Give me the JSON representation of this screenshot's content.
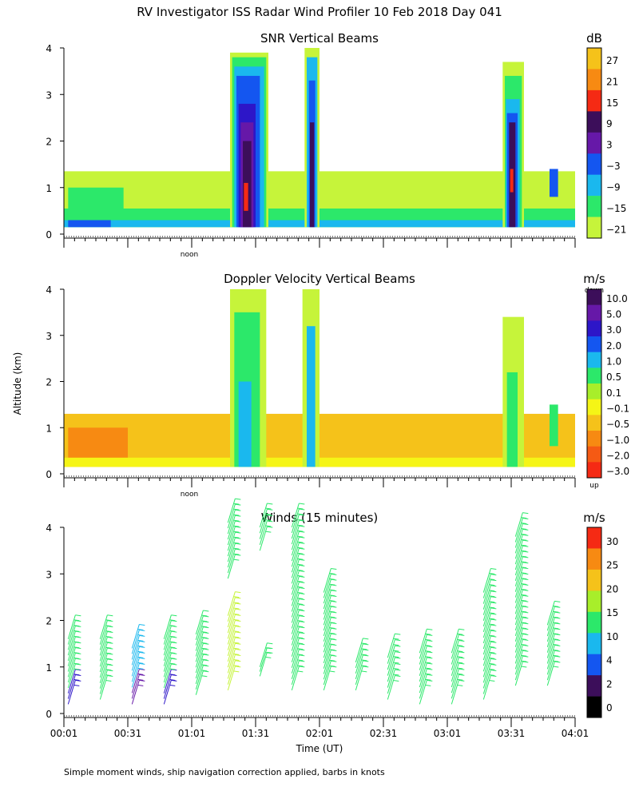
{
  "title": "RV Investigator ISS Radar Wind Profiler  10 Feb 2018 Day 041",
  "footnote": "Simple moment winds, ship navigation correction applied, barbs in knots",
  "y_axis_label": "Altitude (km)",
  "x_axis_label": "Time (UT)",
  "noon_label": "noon",
  "colors": {
    "white": "#ffffff",
    "lime": "#c6f43a",
    "green": "#2ce86a",
    "cyan": "#1ab8ee",
    "blue": "#1456f0",
    "dblue": "#2d16c8",
    "purple": "#6618a8",
    "dpurple": "#3c0e5a",
    "red": "#f52a14",
    "orange": "#f78a12",
    "yorange": "#f5c21a",
    "yellow": "#f5f516"
  },
  "chart_data": [
    {
      "type": "heatmap",
      "id": "snr",
      "title": "SNR Vertical Beams",
      "unit": "dB",
      "ylim": [
        0,
        4
      ],
      "yticks": [
        "0",
        "1",
        "2",
        "3",
        "4"
      ],
      "xlim": [
        0,
        240
      ],
      "colorbar": {
        "labels": [
          "27",
          "21",
          "15",
          "9",
          "3",
          "−3",
          "−9",
          "−15",
          "−21"
        ],
        "colors": [
          "#f5c21a",
          "#f78a12",
          "#f52a14",
          "#3c0e5a",
          "#6618a8",
          "#1456f0",
          "#1ab8ee",
          "#2ce86a",
          "#c6f43a"
        ]
      },
      "cells": [
        {
          "t0": 0,
          "t1": 240,
          "h0": 0.15,
          "h1": 1.35,
          "c": "lime"
        },
        {
          "t0": 2,
          "t1": 28,
          "h0": 0.3,
          "h1": 1.0,
          "c": "green"
        },
        {
          "t0": 0,
          "t1": 240,
          "h0": 0.15,
          "h1": 0.55,
          "c": "green"
        },
        {
          "t0": 0,
          "t1": 240,
          "h0": 0.15,
          "h1": 0.3,
          "c": "cyan"
        },
        {
          "t0": 2,
          "t1": 22,
          "h0": 0.15,
          "h1": 0.3,
          "c": "blue"
        },
        {
          "t0": 78,
          "t1": 96,
          "h0": 0.15,
          "h1": 3.9,
          "c": "lime"
        },
        {
          "t0": 79,
          "t1": 95,
          "h0": 0.15,
          "h1": 3.8,
          "c": "green"
        },
        {
          "t0": 80,
          "t1": 94,
          "h0": 0.15,
          "h1": 3.6,
          "c": "cyan"
        },
        {
          "t0": 81,
          "t1": 92,
          "h0": 0.15,
          "h1": 3.4,
          "c": "blue"
        },
        {
          "t0": 82,
          "t1": 90,
          "h0": 0.15,
          "h1": 2.8,
          "c": "dblue"
        },
        {
          "t0": 83,
          "t1": 89,
          "h0": 0.15,
          "h1": 2.4,
          "c": "purple"
        },
        {
          "t0": 84,
          "t1": 88,
          "h0": 0.15,
          "h1": 2.0,
          "c": "dpurple"
        },
        {
          "t0": 84.5,
          "t1": 86.5,
          "h0": 0.5,
          "h1": 1.1,
          "c": "red"
        },
        {
          "t0": 113,
          "t1": 120,
          "h0": 0.15,
          "h1": 4.0,
          "c": "lime"
        },
        {
          "t0": 114,
          "t1": 119,
          "h0": 0.15,
          "h1": 3.8,
          "c": "cyan"
        },
        {
          "t0": 115,
          "t1": 118,
          "h0": 0.15,
          "h1": 3.3,
          "c": "blue"
        },
        {
          "t0": 115.5,
          "t1": 117.5,
          "h0": 0.15,
          "h1": 2.4,
          "c": "dpurple"
        },
        {
          "t0": 206,
          "t1": 216,
          "h0": 0.15,
          "h1": 3.7,
          "c": "lime"
        },
        {
          "t0": 207,
          "t1": 215,
          "h0": 0.15,
          "h1": 3.4,
          "c": "green"
        },
        {
          "t0": 207.5,
          "t1": 214,
          "h0": 0.15,
          "h1": 2.9,
          "c": "cyan"
        },
        {
          "t0": 208,
          "t1": 213,
          "h0": 0.15,
          "h1": 2.6,
          "c": "blue"
        },
        {
          "t0": 209,
          "t1": 212,
          "h0": 0.15,
          "h1": 2.4,
          "c": "dpurple"
        },
        {
          "t0": 209.5,
          "t1": 211,
          "h0": 0.9,
          "h1": 1.4,
          "c": "red"
        },
        {
          "t0": 228,
          "t1": 232,
          "h0": 0.8,
          "h1": 1.4,
          "c": "blue"
        }
      ]
    },
    {
      "type": "heatmap",
      "id": "doppler",
      "title": "Doppler Velocity Vertical Beams",
      "unit": "m/s",
      "top_note": "down",
      "bottom_note": "up",
      "ylim": [
        0,
        4
      ],
      "yticks": [
        "0",
        "1",
        "2",
        "3",
        "4"
      ],
      "xlim": [
        0,
        240
      ],
      "colorbar": {
        "labels": [
          "10.0",
          "5.0",
          "3.0",
          "2.0",
          "1.0",
          "0.5",
          "0.1",
          "−0.1",
          "−0.5",
          "−1.0",
          "−2.0",
          "−3.0"
        ],
        "colors": [
          "#3c0e5a",
          "#6618a8",
          "#2d16c8",
          "#1456f0",
          "#1ab8ee",
          "#2ce86a",
          "#a8ee2a",
          "#f5f516",
          "#f5c21a",
          "#f78a12",
          "#f55a14",
          "#f52a14"
        ]
      },
      "cells": [
        {
          "t0": 0,
          "t1": 240,
          "h0": 0.15,
          "h1": 1.3,
          "c": "yorange"
        },
        {
          "t0": 2,
          "t1": 30,
          "h0": 0.25,
          "h1": 1.0,
          "c": "orange"
        },
        {
          "t0": 0,
          "t1": 240,
          "h0": 0.15,
          "h1": 0.35,
          "c": "yellow"
        },
        {
          "t0": 78,
          "t1": 95,
          "h0": 0.15,
          "h1": 4.0,
          "c": "lime"
        },
        {
          "t0": 80,
          "t1": 92,
          "h0": 0.15,
          "h1": 3.5,
          "c": "green"
        },
        {
          "t0": 82,
          "t1": 88,
          "h0": 0.15,
          "h1": 2.0,
          "c": "cyan"
        },
        {
          "t0": 112,
          "t1": 120,
          "h0": 0.15,
          "h1": 4.0,
          "c": "lime"
        },
        {
          "t0": 114,
          "t1": 118,
          "h0": 0.15,
          "h1": 3.2,
          "c": "cyan"
        },
        {
          "t0": 206,
          "t1": 216,
          "h0": 0.15,
          "h1": 3.4,
          "c": "lime"
        },
        {
          "t0": 208,
          "t1": 213,
          "h0": 0.15,
          "h1": 2.2,
          "c": "green"
        },
        {
          "t0": 228,
          "t1": 232,
          "h0": 0.6,
          "h1": 1.5,
          "c": "green"
        }
      ]
    },
    {
      "type": "wind-barbs",
      "id": "winds",
      "title": "Winds (15 minutes)",
      "unit": "m/s",
      "ylim": [
        0,
        4
      ],
      "yticks": [
        "0",
        "1",
        "2",
        "3",
        "4"
      ],
      "xlim": [
        0,
        240
      ],
      "xlabel": "Time (UT)",
      "xticks": [
        "00:01",
        "00:31",
        "01:01",
        "01:31",
        "02:01",
        "02:31",
        "03:01",
        "03:31",
        "04:01"
      ],
      "colorbar": {
        "labels": [
          "30",
          "25",
          "20",
          "15",
          "10",
          "4",
          "2",
          "0"
        ],
        "colors": [
          "#f52a14",
          "#f78a12",
          "#f5c21a",
          "#a8ee2a",
          "#2ce86a",
          "#1ab8ee",
          "#1456f0",
          "#3c0e5a",
          "#000000"
        ]
      },
      "profiles": [
        {
          "t": 2,
          "h0": 0.2,
          "h1": 1.6,
          "c": "green",
          "low": "dblue"
        },
        {
          "t": 17,
          "h0": 0.3,
          "h1": 1.6,
          "c": "green"
        },
        {
          "t": 32,
          "h0": 0.2,
          "h1": 1.4,
          "c": "cyan",
          "low": "purple"
        },
        {
          "t": 47,
          "h0": 0.2,
          "h1": 1.6,
          "c": "green",
          "low": "dblue"
        },
        {
          "t": 62,
          "h0": 0.4,
          "h1": 1.7,
          "c": "green"
        },
        {
          "t": 77,
          "h0": 0.5,
          "h1": 2.1,
          "c": "lime"
        },
        {
          "t": 77,
          "h0": 2.9,
          "h1": 4.1,
          "c": "green"
        },
        {
          "t": 92,
          "h0": 0.8,
          "h1": 1.0,
          "c": "green"
        },
        {
          "t": 92,
          "h0": 3.5,
          "h1": 4.0,
          "c": "green"
        },
        {
          "t": 107,
          "h0": 0.5,
          "h1": 4.0,
          "c": "green"
        },
        {
          "t": 122,
          "h0": 0.5,
          "h1": 2.6,
          "c": "green"
        },
        {
          "t": 137,
          "h0": 0.5,
          "h1": 1.1,
          "c": "green"
        },
        {
          "t": 152,
          "h0": 0.3,
          "h1": 1.2,
          "c": "green"
        },
        {
          "t": 167,
          "h0": 0.2,
          "h1": 1.3,
          "c": "green"
        },
        {
          "t": 182,
          "h0": 0.2,
          "h1": 1.3,
          "c": "green"
        },
        {
          "t": 197,
          "h0": 0.3,
          "h1": 2.6,
          "c": "green"
        },
        {
          "t": 212,
          "h0": 0.6,
          "h1": 3.8,
          "c": "green"
        },
        {
          "t": 227,
          "h0": 0.6,
          "h1": 1.9,
          "c": "green"
        }
      ]
    }
  ]
}
